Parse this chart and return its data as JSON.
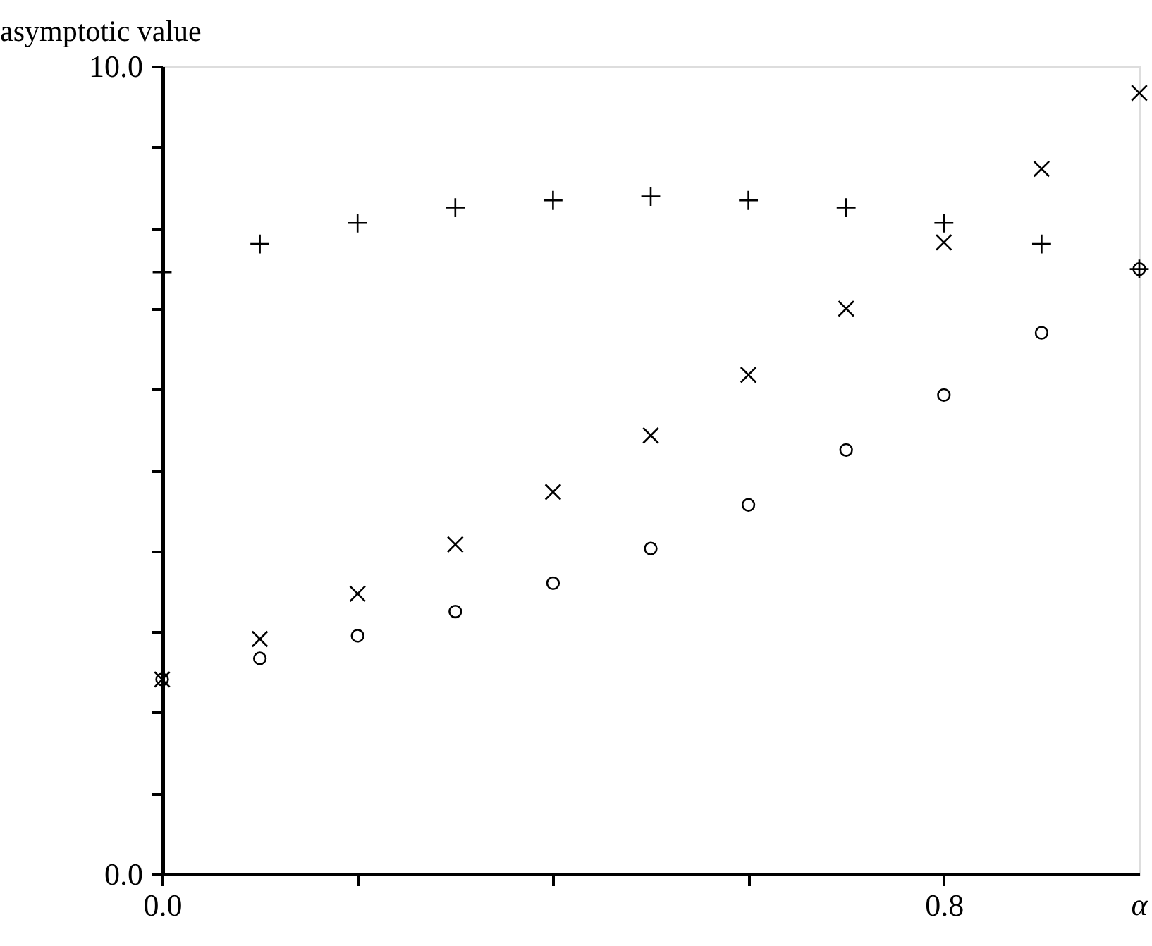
{
  "chart_data": {
    "type": "scatter",
    "xlabel": "α",
    "ylabel": "asymptotic value",
    "x": [
      0,
      0.1,
      0.2,
      0.3,
      0.4,
      0.5,
      0.6,
      0.7,
      0.8,
      0.9,
      1.0
    ],
    "series": [
      {
        "color": "#000000",
        "marker": "cross",
        "values": [
          7.45,
          7.8,
          8.06,
          8.25,
          8.34,
          8.39,
          8.34,
          8.25,
          8.06,
          7.8,
          7.49
        ]
      },
      {
        "color": "#000000",
        "marker": "x",
        "values": [
          2.41,
          2.91,
          3.47,
          4.08,
          4.73,
          5.43,
          6.18,
          7.0,
          7.82,
          8.73,
          9.67
        ]
      },
      {
        "color": "#000000",
        "marker": "circle",
        "values": [
          2.41,
          2.67,
          2.95,
          3.25,
          3.6,
          4.03,
          4.57,
          5.25,
          5.93,
          6.7,
          7.49
        ]
      }
    ],
    "xlim": [
      0,
      1.0
    ],
    "ylim": [
      0,
      10
    ],
    "xticks": [
      {
        "value": 0,
        "label": "0.0"
      },
      {
        "value": 0.2,
        "label": null
      },
      {
        "value": 0.4,
        "label": null
      },
      {
        "value": 0.6,
        "label": null
      },
      {
        "value": 0.8,
        "label": "0.8"
      }
    ],
    "yticks": [
      {
        "value": 0,
        "label": "0.0"
      },
      {
        "value": 1,
        "label": null
      },
      {
        "value": 2,
        "label": null
      },
      {
        "value": 3,
        "label": null
      },
      {
        "value": 4,
        "label": null
      },
      {
        "value": 5,
        "label": null
      },
      {
        "value": 6,
        "label": null
      },
      {
        "value": 7,
        "label": null
      },
      {
        "value": 8,
        "label": null
      },
      {
        "value": 9,
        "label": null
      },
      {
        "value": 10,
        "label": "10.0"
      }
    ],
    "grid": false
  }
}
